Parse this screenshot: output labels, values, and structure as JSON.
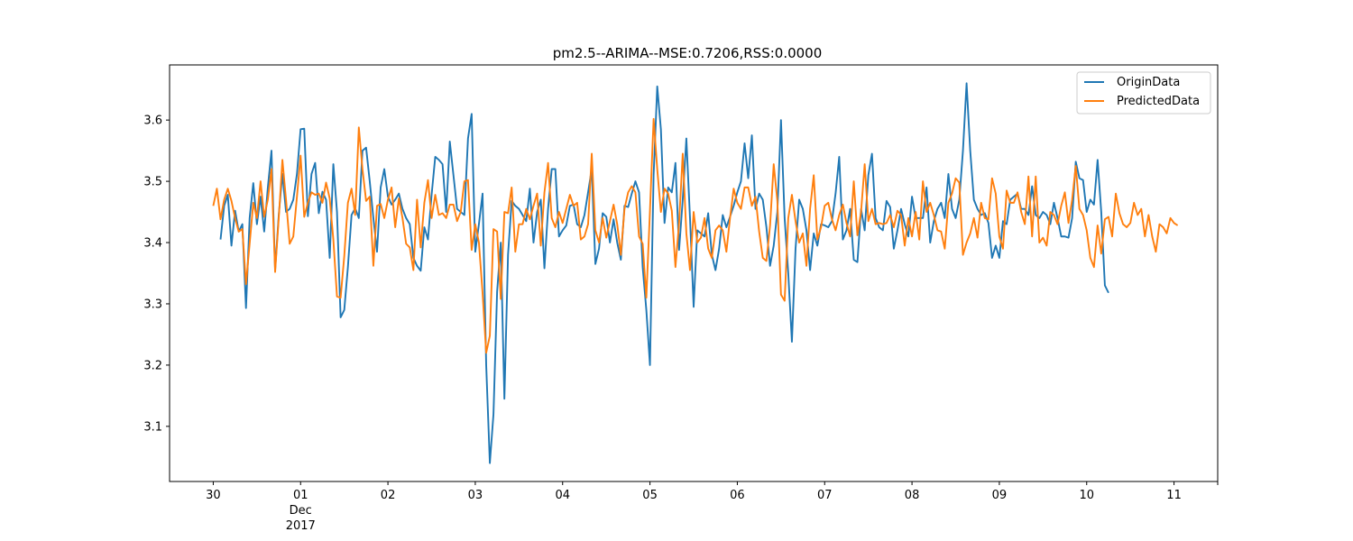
{
  "chart_data": {
    "type": "line",
    "title": "pm2.5--ARIMA--MSE:0.7206,RSS:0.0000",
    "xlabel": "",
    "ylabel": "",
    "x_unit": "date",
    "x_range": [
      "2017-11-29T12:00",
      "2017-12-11T12:00"
    ],
    "ylim": [
      3.01,
      3.69
    ],
    "grid": false,
    "legend_position": "top-right",
    "x_ticks": [
      {
        "at": "2017-11-30",
        "label": "30"
      },
      {
        "at": "2017-12-01",
        "label": "01"
      },
      {
        "at": "2017-12-02",
        "label": "02"
      },
      {
        "at": "2017-12-03",
        "label": "03"
      },
      {
        "at": "2017-12-04",
        "label": "04"
      },
      {
        "at": "2017-12-05",
        "label": "05"
      },
      {
        "at": "2017-12-06",
        "label": "06"
      },
      {
        "at": "2017-12-07",
        "label": "07"
      },
      {
        "at": "2017-12-08",
        "label": "08"
      },
      {
        "at": "2017-12-09",
        "label": "09"
      },
      {
        "at": "2017-12-10",
        "label": "10"
      },
      {
        "at": "2017-12-11",
        "label": "11"
      }
    ],
    "x_tick_sublabels": {
      "at": "2017-12-01",
      "lines": [
        "Dec",
        "2017"
      ]
    },
    "y_ticks": [
      3.1,
      3.2,
      3.3,
      3.4,
      3.5,
      3.6
    ],
    "y_tick_labels": [
      "3.1",
      "3.2",
      "3.3",
      "3.4",
      "3.5",
      "3.6"
    ],
    "series": [
      {
        "name": "OriginData",
        "color": "#1f77b4",
        "start": "2017-11-30T02:00",
        "interval_hours": 1,
        "values": [
          3.405,
          3.46,
          3.478,
          3.395,
          3.452,
          3.418,
          3.43,
          3.293,
          3.44,
          3.497,
          3.43,
          3.475,
          3.418,
          3.49,
          3.55,
          3.355,
          3.445,
          3.512,
          3.45,
          3.455,
          3.47,
          3.512,
          3.585,
          3.586,
          3.443,
          3.512,
          3.53,
          3.448,
          3.483,
          3.47,
          3.375,
          3.528,
          3.45,
          3.278,
          3.29,
          3.36,
          3.445,
          3.456,
          3.44,
          3.55,
          3.555,
          3.5,
          3.44,
          3.385,
          3.49,
          3.52,
          3.475,
          3.462,
          3.47,
          3.48,
          3.455,
          3.44,
          3.43,
          3.375,
          3.362,
          3.354,
          3.425,
          3.405,
          3.478,
          3.54,
          3.535,
          3.528,
          3.45,
          3.565,
          3.51,
          3.455,
          3.45,
          3.445,
          3.57,
          3.61,
          3.385,
          3.43,
          3.48,
          3.2,
          3.04,
          3.12,
          3.32,
          3.4,
          3.145,
          3.38,
          3.468,
          3.46,
          3.455,
          3.445,
          3.435,
          3.488,
          3.4,
          3.45,
          3.47,
          3.358,
          3.455,
          3.52,
          3.52,
          3.41,
          3.42,
          3.428,
          3.46,
          3.462,
          3.43,
          3.425,
          3.445,
          3.482,
          3.52,
          3.365,
          3.39,
          3.448,
          3.442,
          3.4,
          3.438,
          3.4,
          3.372,
          3.46,
          3.458,
          3.48,
          3.5,
          3.482,
          3.36,
          3.29,
          3.2,
          3.51,
          3.655,
          3.585,
          3.432,
          3.49,
          3.482,
          3.53,
          3.388,
          3.47,
          3.57,
          3.44,
          3.295,
          3.42,
          3.415,
          3.41,
          3.448,
          3.38,
          3.355,
          3.39,
          3.445,
          3.425,
          3.442,
          3.46,
          3.482,
          3.5,
          3.562,
          3.505,
          3.575,
          3.455,
          3.48,
          3.47,
          3.425,
          3.362,
          3.395,
          3.45,
          3.6,
          3.44,
          3.35,
          3.238,
          3.39,
          3.47,
          3.455,
          3.42,
          3.355,
          3.415,
          3.395,
          3.43,
          3.428,
          3.425,
          3.435,
          3.48,
          3.54,
          3.405,
          3.42,
          3.455,
          3.372,
          3.368,
          3.455,
          3.42,
          3.51,
          3.545,
          3.44,
          3.425,
          3.42,
          3.468,
          3.458,
          3.39,
          3.42,
          3.455,
          3.43,
          3.41,
          3.475,
          3.44,
          3.44,
          3.44,
          3.49,
          3.4,
          3.435,
          3.455,
          3.465,
          3.44,
          3.512,
          3.455,
          3.44,
          3.47,
          3.55,
          3.66,
          3.55,
          3.47,
          3.455,
          3.445,
          3.448,
          3.432,
          3.375,
          3.395,
          3.375,
          3.435,
          3.43,
          3.47,
          3.475,
          3.48,
          3.455,
          3.455,
          3.445,
          3.492,
          3.445,
          3.44,
          3.45,
          3.445,
          3.43,
          3.465,
          3.44,
          3.41,
          3.41,
          3.408,
          3.44,
          3.532,
          3.505,
          3.502,
          3.45,
          3.47,
          3.462,
          3.535,
          3.45,
          3.33,
          3.318
        ]
      },
      {
        "name": "PredictedData",
        "color": "#ff7f0e",
        "start": "2017-11-30T00:00",
        "interval_hours": 1,
        "values": [
          3.46,
          3.488,
          3.438,
          3.47,
          3.488,
          3.468,
          3.44,
          3.418,
          3.422,
          3.332,
          3.398,
          3.465,
          3.44,
          3.5,
          3.442,
          3.47,
          3.52,
          3.352,
          3.44,
          3.535,
          3.47,
          3.398,
          3.41,
          3.475,
          3.542,
          3.442,
          3.465,
          3.482,
          3.478,
          3.48,
          3.465,
          3.498,
          3.472,
          3.405,
          3.312,
          3.31,
          3.378,
          3.465,
          3.488,
          3.445,
          3.588,
          3.52,
          3.468,
          3.475,
          3.362,
          3.46,
          3.463,
          3.44,
          3.47,
          3.49,
          3.425,
          3.472,
          3.44,
          3.398,
          3.392,
          3.355,
          3.47,
          3.392,
          3.465,
          3.502,
          3.44,
          3.478,
          3.445,
          3.448,
          3.44,
          3.462,
          3.462,
          3.435,
          3.45,
          3.5,
          3.502,
          3.388,
          3.43,
          3.4,
          3.318,
          3.22,
          3.248,
          3.422,
          3.418,
          3.308,
          3.45,
          3.448,
          3.49,
          3.385,
          3.43,
          3.43,
          3.455,
          3.438,
          3.46,
          3.48,
          3.395,
          3.482,
          3.53,
          3.44,
          3.425,
          3.45,
          3.432,
          3.455,
          3.478,
          3.46,
          3.465,
          3.405,
          3.41,
          3.43,
          3.545,
          3.42,
          3.4,
          3.44,
          3.408,
          3.435,
          3.462,
          3.43,
          3.38,
          3.455,
          3.482,
          3.492,
          3.482,
          3.41,
          3.398,
          3.31,
          3.452,
          3.602,
          3.52,
          3.45,
          3.488,
          3.48,
          3.452,
          3.36,
          3.432,
          3.545,
          3.415,
          3.355,
          3.45,
          3.4,
          3.408,
          3.44,
          3.39,
          3.375,
          3.42,
          3.428,
          3.42,
          3.385,
          3.44,
          3.488,
          3.465,
          3.455,
          3.49,
          3.49,
          3.46,
          3.475,
          3.418,
          3.375,
          3.37,
          3.428,
          3.528,
          3.468,
          3.315,
          3.305,
          3.44,
          3.478,
          3.435,
          3.4,
          3.415,
          3.362,
          3.455,
          3.51,
          3.405,
          3.425,
          3.46,
          3.465,
          3.438,
          3.42,
          3.445,
          3.462,
          3.432,
          3.41,
          3.5,
          3.412,
          3.45,
          3.528,
          3.435,
          3.455,
          3.43,
          3.432,
          3.43,
          3.432,
          3.445,
          3.425,
          3.452,
          3.445,
          3.395,
          3.44,
          3.41,
          3.45,
          3.405,
          3.5,
          3.45,
          3.465,
          3.445,
          3.42,
          3.418,
          3.39,
          3.465,
          3.48,
          3.505,
          3.498,
          3.38,
          3.4,
          3.415,
          3.44,
          3.408,
          3.465,
          3.44,
          3.438,
          3.505,
          3.48,
          3.41,
          3.39,
          3.485,
          3.465,
          3.465,
          3.482,
          3.45,
          3.43,
          3.508,
          3.41,
          3.508,
          3.4,
          3.408,
          3.395,
          3.45,
          3.445,
          3.43,
          3.46,
          3.482,
          3.432,
          3.47,
          3.525,
          3.455,
          3.445,
          3.42,
          3.375,
          3.36,
          3.428,
          3.382,
          3.438,
          3.442,
          3.41,
          3.48,
          3.448,
          3.43,
          3.425,
          3.432,
          3.465,
          3.445,
          3.455,
          3.41,
          3.445,
          3.41,
          3.385,
          3.43,
          3.425,
          3.415,
          3.44,
          3.432,
          3.428
        ]
      }
    ]
  }
}
